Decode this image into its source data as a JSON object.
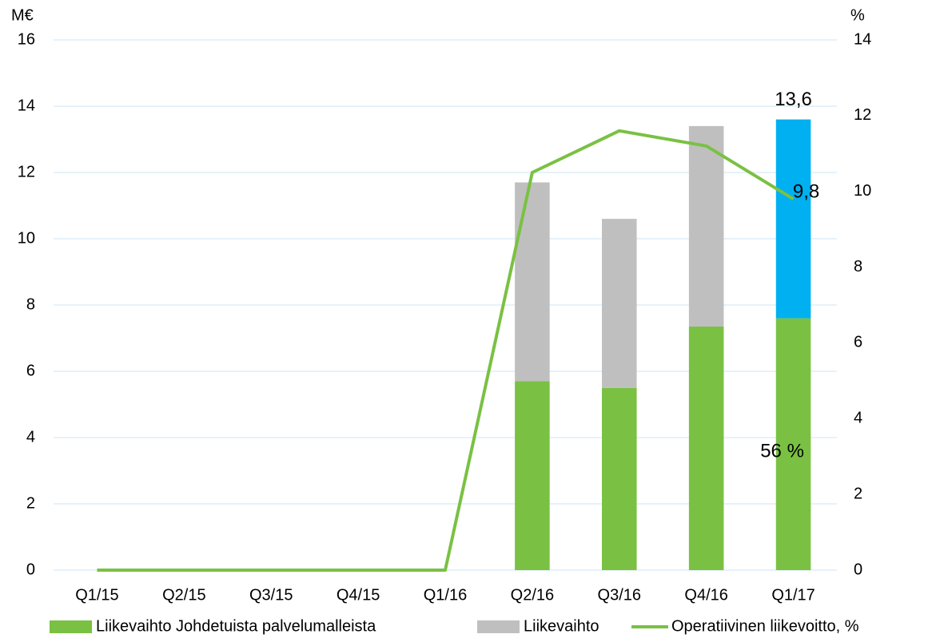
{
  "chart_data": {
    "type": "bar",
    "y_label": "M€",
    "y2_label": "%",
    "categories": [
      "Q1/15",
      "Q2/15",
      "Q3/15",
      "Q4/15",
      "Q1/16",
      "Q2/16",
      "Q3/16",
      "Q4/16",
      "Q1/17"
    ],
    "series": [
      {
        "name": "Liikevaihto Johdetuista palvelumalleista",
        "type": "bar",
        "color": "#7ac143",
        "values": [
          null,
          null,
          null,
          null,
          null,
          5.7,
          5.5,
          7.35,
          7.6
        ]
      },
      {
        "name": "Liikevaihto",
        "type": "bar",
        "color": "#bfbfbf",
        "colors": [
          "#bfbfbf",
          "#bfbfbf",
          "#bfbfbf",
          "#bfbfbf",
          "#bfbfbf",
          "#bfbfbf",
          "#bfbfbf",
          "#bfbfbf",
          "#00b0f0"
        ],
        "values": [
          null,
          null,
          null,
          null,
          null,
          6.0,
          5.1,
          6.05,
          6.0
        ]
      },
      {
        "name": "Operatiivinen liikevoitto, %",
        "type": "line",
        "color": "#7ac143",
        "axis": "y2",
        "values": [
          0,
          0,
          0,
          0,
          0,
          10.5,
          11.6,
          11.2,
          9.8
        ],
        "value_labels": [
          null,
          null,
          null,
          null,
          null,
          null,
          null,
          null,
          "9,8"
        ]
      }
    ],
    "annotations": [
      "13,6",
      "56 %"
    ],
    "stacked": true,
    "ylim": [
      0,
      16
    ],
    "yticks": [
      0,
      2,
      4,
      6,
      8,
      10,
      12,
      14,
      16
    ],
    "y2lim": [
      0,
      14
    ],
    "y2ticks": [
      0,
      2,
      4,
      6,
      8,
      10,
      12,
      14
    ],
    "grid": true,
    "legend": "bottom"
  }
}
